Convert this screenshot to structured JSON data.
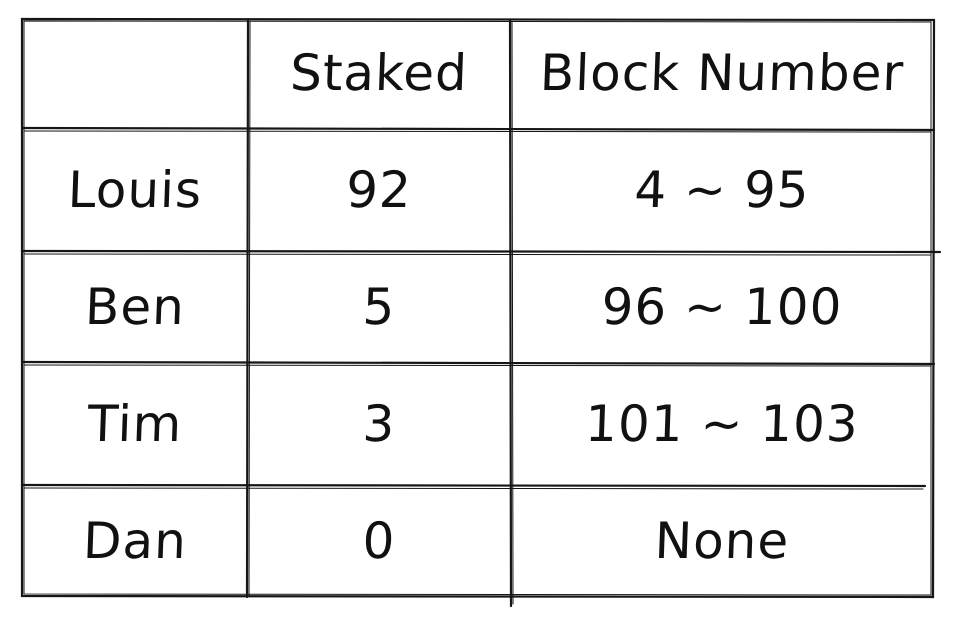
{
  "table": {
    "headers": [
      "",
      "Staked",
      "Block Number"
    ],
    "rows": [
      {
        "name": "Louis",
        "staked": "92",
        "block": "4 ~ 95"
      },
      {
        "name": "Ben",
        "staked": "5",
        "block": "96 ~ 100"
      },
      {
        "name": "Tim",
        "staked": "3",
        "block": "101 ~ 103"
      },
      {
        "name": "Dan",
        "staked": "0",
        "block": "None"
      }
    ]
  }
}
